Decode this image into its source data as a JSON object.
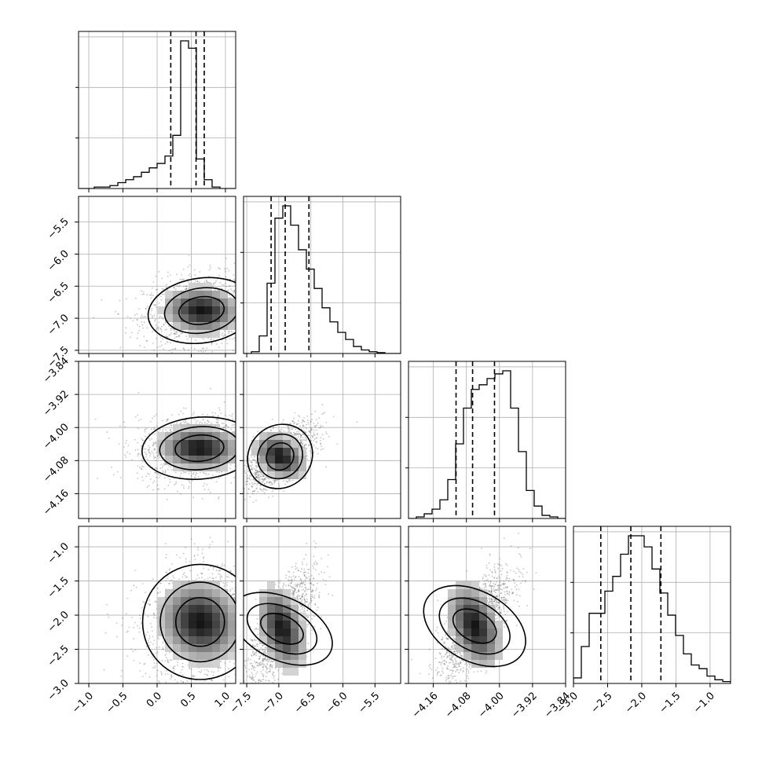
{
  "chart_data": {
    "type": "corner",
    "parameters": [
      {
        "ticks": [
          -1.0,
          -0.5,
          0.0,
          0.5,
          1.0
        ],
        "tick_labels": [
          "−1.0",
          "−0.5",
          "0.0",
          "0.5",
          "1.0"
        ],
        "range": [
          -1.15,
          1.15
        ],
        "quantiles": [
          0.2,
          0.57,
          0.69
        ],
        "hist_counts": [
          0,
          0,
          1,
          1,
          2,
          4,
          6,
          8,
          11,
          14,
          17,
          22,
          36,
          100,
          95,
          20,
          6,
          1,
          0,
          0
        ]
      },
      {
        "ticks": [
          -7.5,
          -7.0,
          -6.5,
          -6.0,
          -5.5
        ],
        "tick_labels": [
          "−7.5",
          "−7.0",
          "−6.5",
          "−6.0",
          "−5.5"
        ],
        "range": [
          -7.55,
          -5.1
        ],
        "quantiles": [
          -7.12,
          -6.9,
          -6.53
        ],
        "hist_counts": [
          0,
          1,
          10,
          40,
          77,
          84,
          73,
          59,
          48,
          37,
          26,
          18,
          12,
          8,
          4,
          2,
          1,
          0.5,
          0,
          0
        ]
      },
      {
        "ticks": [
          -4.16,
          -4.08,
          -4.0,
          -3.92,
          -3.84
        ],
        "tick_labels": [
          "−4.16",
          "−4.08",
          "−4.00",
          "−3.92",
          "−3.84"
        ],
        "range": [
          -4.22,
          -3.84
        ],
        "quantiles": [
          -4.105,
          -4.065,
          -4.012
        ],
        "hist_counts": [
          0,
          1,
          3,
          6,
          12,
          25,
          48,
          71,
          83,
          86,
          90,
          93,
          95,
          71,
          43,
          18,
          8,
          2,
          1,
          0
        ]
      },
      {
        "ticks": [
          -3.0,
          -2.5,
          -2.0,
          -1.5,
          -1.0
        ],
        "tick_labels": [
          "−3.0",
          "−2.5",
          "−2.0",
          "−1.5",
          "−1.0"
        ],
        "range": [
          -3.0,
          -0.7
        ],
        "quantiles": [
          -2.6,
          -2.16,
          -1.72
        ],
        "hist_counts": [
          3,
          20,
          38,
          38,
          50,
          58,
          70,
          80,
          80,
          74,
          62,
          49,
          37,
          26,
          16,
          10,
          8,
          4,
          2,
          1
        ]
      }
    ],
    "pairs": [
      {
        "row": 1,
        "col": 0,
        "center": [
          0.65,
          -6.88
        ],
        "spread": [
          0.42,
          0.27
        ],
        "tilt": 0.15
      },
      {
        "row": 2,
        "col": 0,
        "center": [
          0.62,
          -4.05
        ],
        "spread": [
          0.45,
          0.04
        ],
        "tilt": 0.1
      },
      {
        "row": 2,
        "col": 1,
        "center": [
          -6.98,
          -4.07
        ],
        "spread": [
          0.28,
          0.04
        ],
        "tilt": 0.65
      },
      {
        "row": 3,
        "col": 0,
        "center": [
          0.63,
          -2.1
        ],
        "spread": [
          0.45,
          0.45
        ],
        "tilt": 0.2
      },
      {
        "row": 3,
        "col": 1,
        "center": [
          -6.95,
          -2.2
        ],
        "spread": [
          0.26,
          0.42
        ],
        "tilt": 0.7
      },
      {
        "row": 3,
        "col": 2,
        "center": [
          -4.06,
          -2.16
        ],
        "spread": [
          0.045,
          0.43
        ],
        "tilt": 0.75
      }
    ],
    "grid": true,
    "title": "",
    "xlabel": "",
    "ylabel": ""
  }
}
